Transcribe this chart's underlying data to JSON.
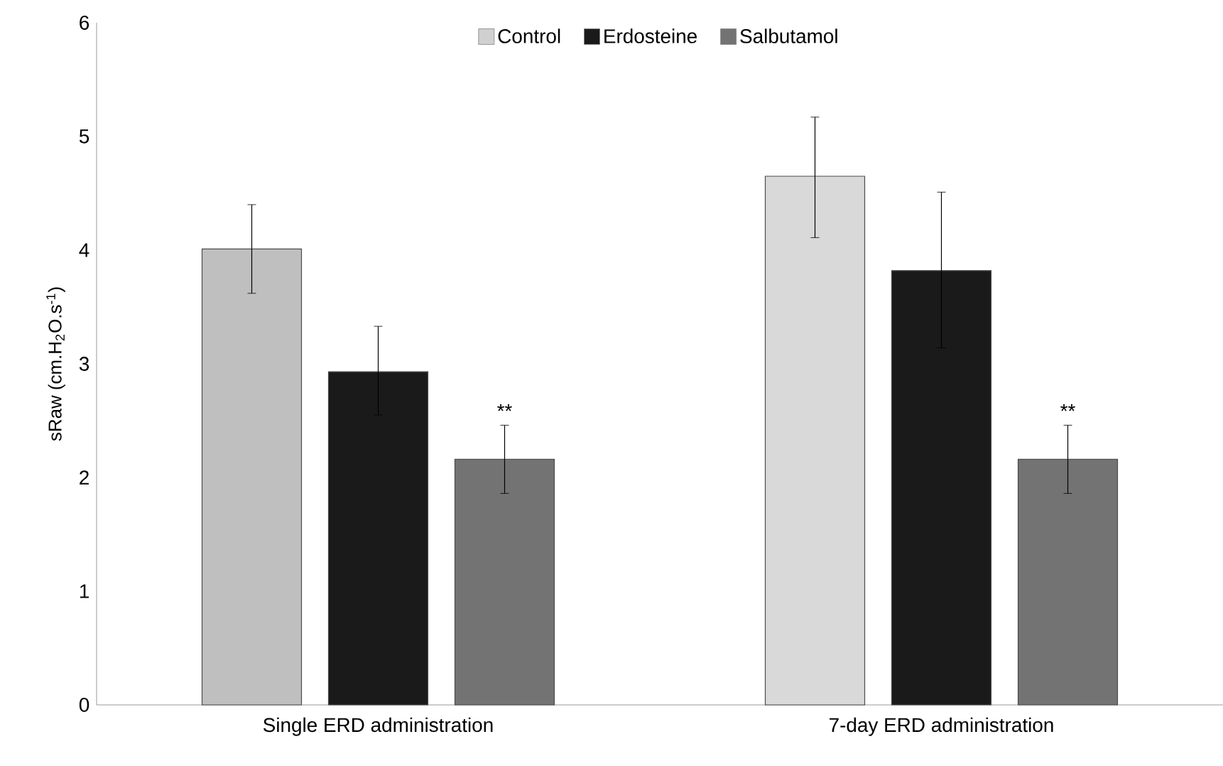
{
  "chart_data": {
    "type": "bar",
    "ylabel": "sRaw (cm.H$_{2}$O.s$^{-1}$)",
    "categories": [
      "Single ERD administration",
      "7-day ERD administration"
    ],
    "series": [
      {
        "name": "Control",
        "color": "#d0d0d0",
        "colors": [
          "#bfbfbf",
          "#d9d9d9"
        ],
        "values": [
          4.01,
          4.65
        ],
        "errors": [
          [
            3.62,
            4.4
          ],
          [
            4.11,
            5.17
          ]
        ]
      },
      {
        "name": "Erdosteine",
        "color": "#1a1a1a",
        "values": [
          2.93,
          3.82
        ],
        "errors": [
          [
            2.55,
            3.33
          ],
          [
            3.14,
            4.51
          ]
        ]
      },
      {
        "name": "Salbutamol",
        "color": "#737373",
        "values": [
          2.16,
          2.16
        ],
        "errors": [
          [
            1.86,
            2.46
          ],
          [
            1.86,
            2.46
          ]
        ]
      }
    ],
    "annotations": [
      "**",
      "**"
    ],
    "ylim": [
      0,
      6
    ],
    "yticks": [
      0,
      1,
      2,
      3,
      4,
      5,
      6
    ],
    "legend": "top",
    "grid": false
  }
}
